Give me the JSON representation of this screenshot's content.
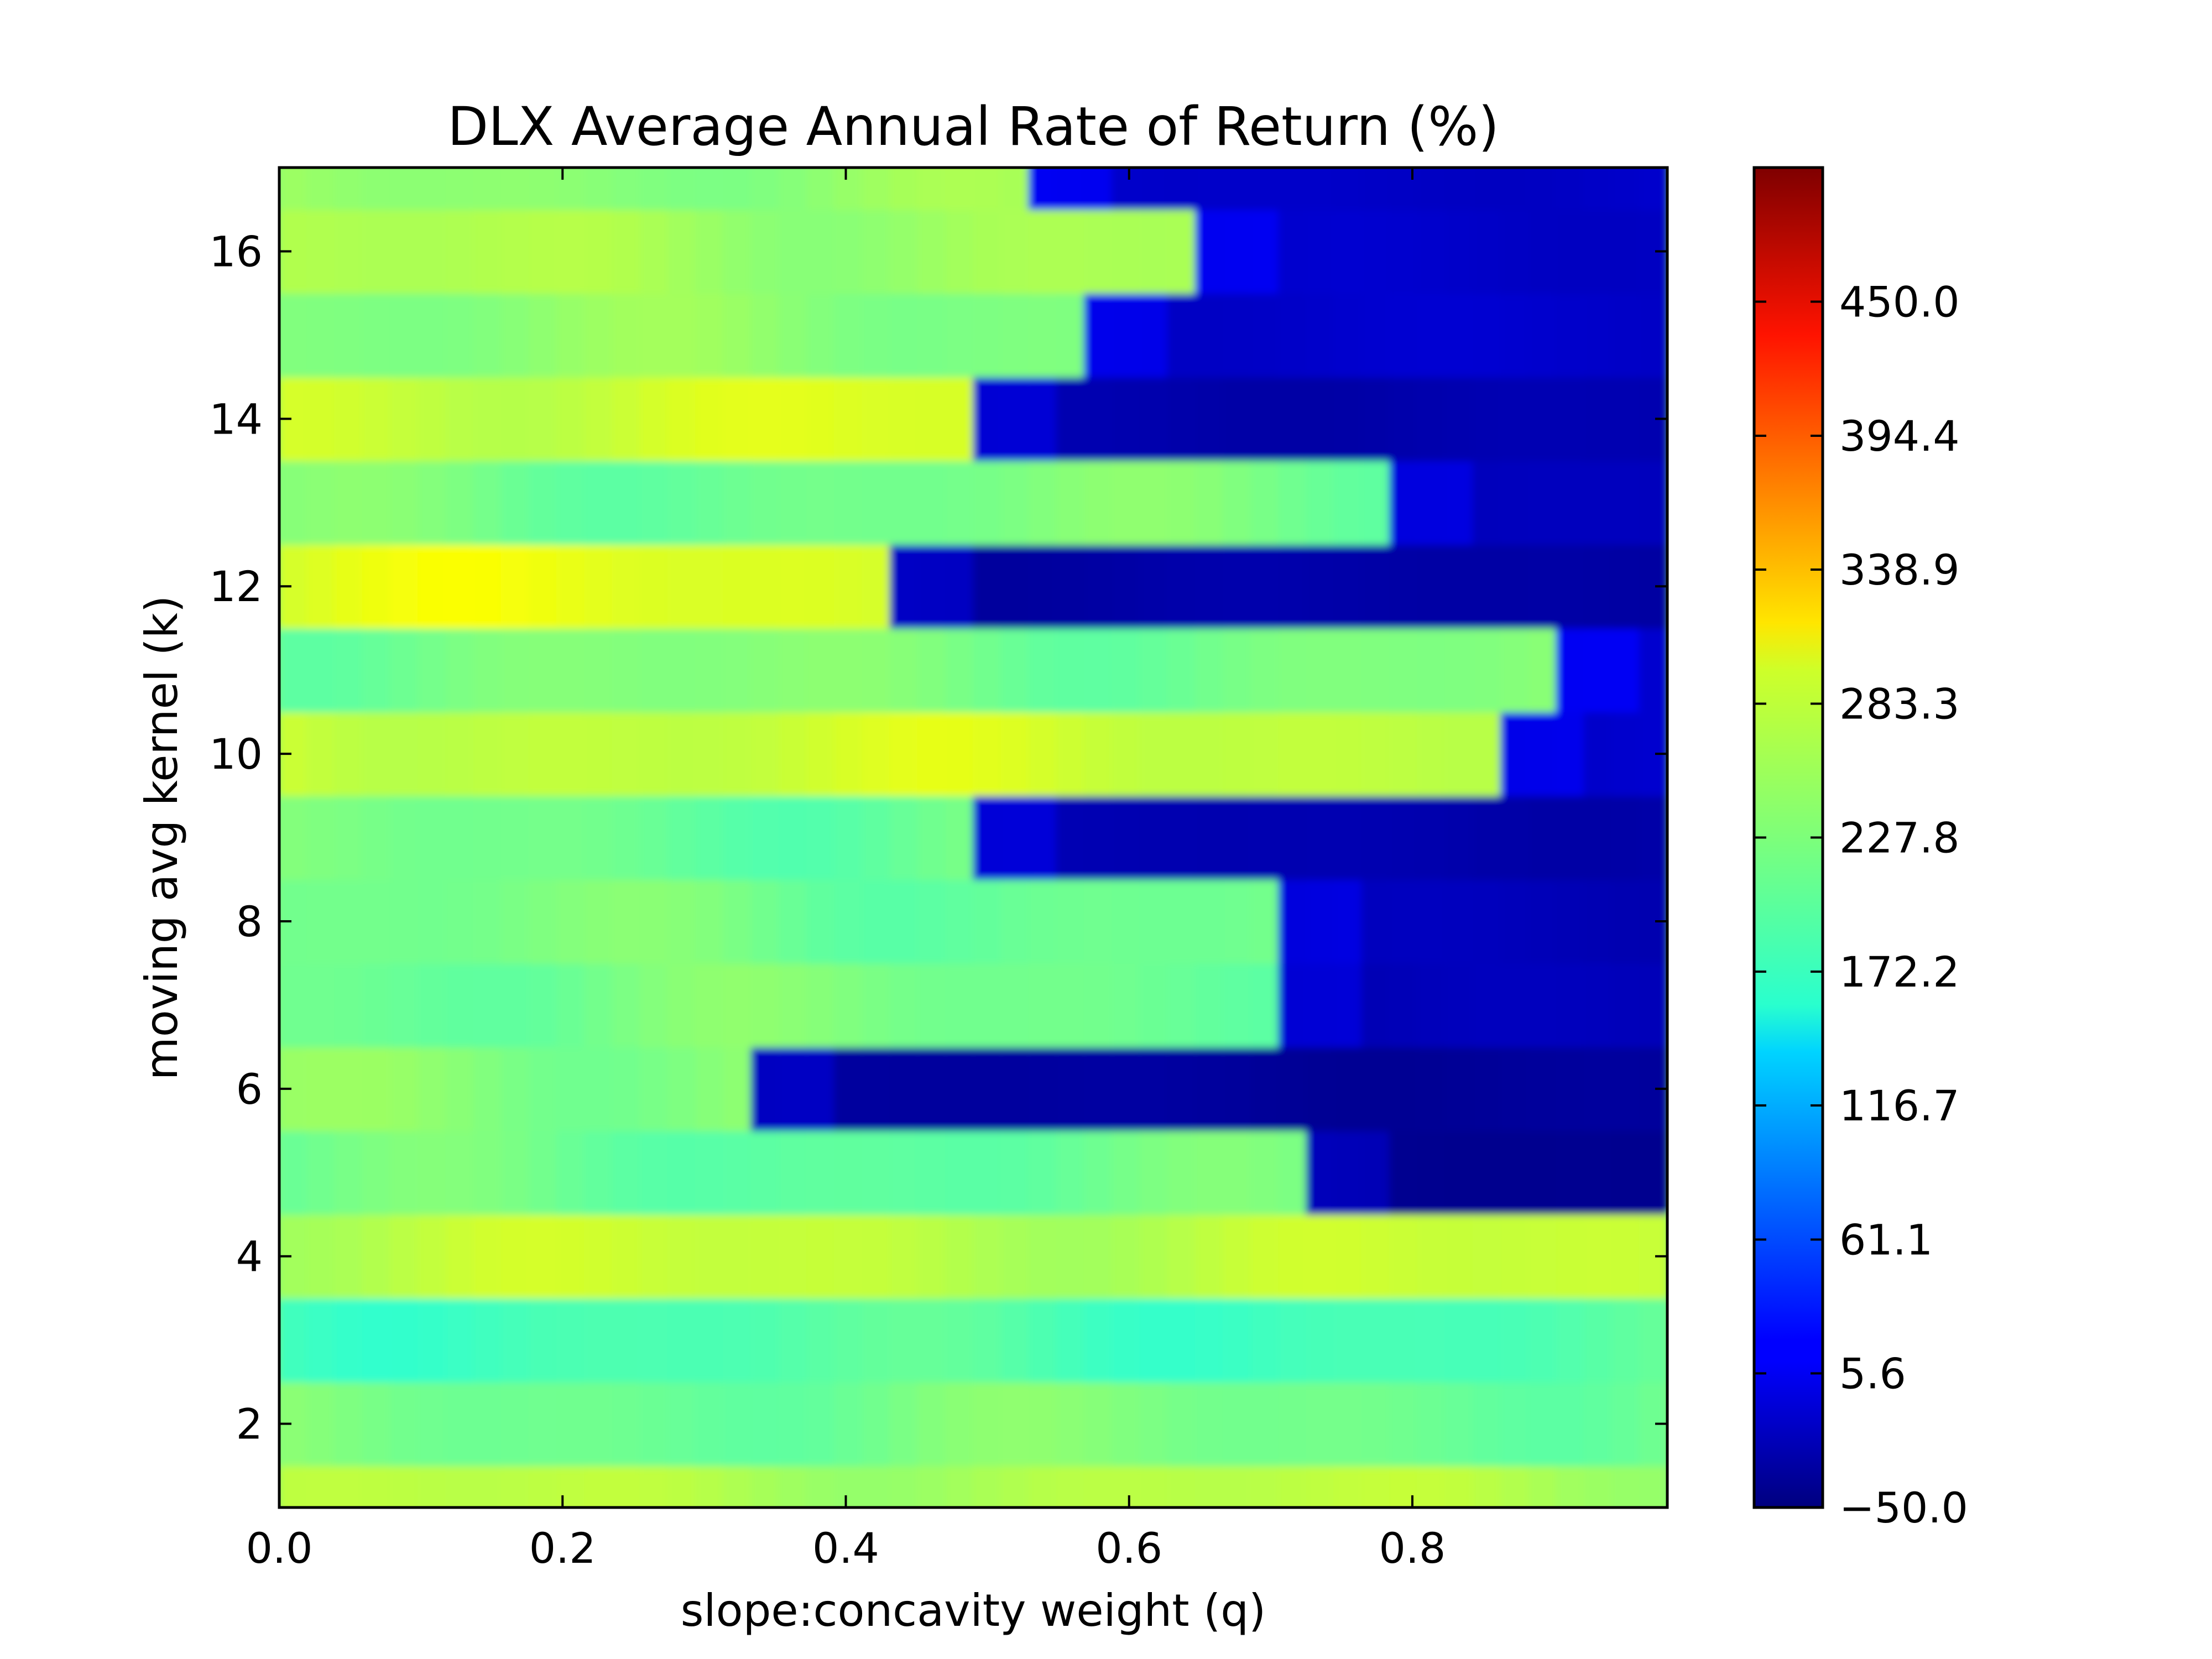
{
  "chart_data": {
    "type": "heatmap",
    "title": "DLX Average Annual Rate of Return (%)",
    "xlabel": "slope:concavity weight (q)",
    "ylabel": "moving avg kernel (k)",
    "xlim": [
      0.0,
      0.98
    ],
    "ylim": [
      1,
      17
    ],
    "x_ticks": [
      "0.0",
      "0.2",
      "0.4",
      "0.6",
      "0.8"
    ],
    "x_tick_values": [
      0.0,
      0.2,
      0.4,
      0.6,
      0.8
    ],
    "y_ticks": [
      "2",
      "4",
      "6",
      "8",
      "10",
      "12",
      "14",
      "16"
    ],
    "y_tick_values": [
      2,
      4,
      6,
      8,
      10,
      12,
      14,
      16
    ],
    "colormap": "jet",
    "colorbar": {
      "min": -50.0,
      "max": 505.6,
      "ticks": [
        "−50.0",
        "5.6",
        "61.1",
        "116.7",
        "172.2",
        "227.8",
        "283.3",
        "338.9",
        "394.4",
        "450.0"
      ],
      "tick_values": [
        -50.0,
        5.6,
        61.1,
        116.7,
        172.2,
        227.8,
        283.3,
        338.9,
        394.4,
        450.0
      ]
    },
    "rows": [
      {
        "k": 1,
        "base": 255,
        "cutoff": 0.98
      },
      {
        "k": 2,
        "base": 222,
        "cutoff": 0.98
      },
      {
        "k": 3,
        "base": 200,
        "cutoff": 0.98
      },
      {
        "k": 4,
        "base": 262,
        "cutoff": 0.98
      },
      {
        "k": 5,
        "base": 215,
        "cutoff": 0.73,
        "low": -40
      },
      {
        "k": 6,
        "base": 235,
        "cutoff": 0.33,
        "low": -35
      },
      {
        "k": 7,
        "base": 222,
        "cutoff": 0.7,
        "low": -20
      },
      {
        "k": 8,
        "base": 220,
        "cutoff": 0.7,
        "low": -20
      },
      {
        "k": 9,
        "base": 218,
        "cutoff": 0.49,
        "low": -25
      },
      {
        "k": 10,
        "base": 268,
        "cutoff": 0.87,
        "low": -10
      },
      {
        "k": 11,
        "base": 225,
        "cutoff": 0.91,
        "low": -10
      },
      {
        "k": 12,
        "base": 280,
        "cutoff": 0.43,
        "low": -30
      },
      {
        "k": 13,
        "base": 222,
        "cutoff": 0.78,
        "low": -15
      },
      {
        "k": 14,
        "base": 272,
        "cutoff": 0.49,
        "low": -25
      },
      {
        "k": 15,
        "base": 232,
        "cutoff": 0.56,
        "low": -10
      },
      {
        "k": 16,
        "base": 248,
        "cutoff": 0.65,
        "low": -10
      },
      {
        "k": 17,
        "base": 238,
        "cutoff": 0.53,
        "low": -10
      }
    ]
  }
}
